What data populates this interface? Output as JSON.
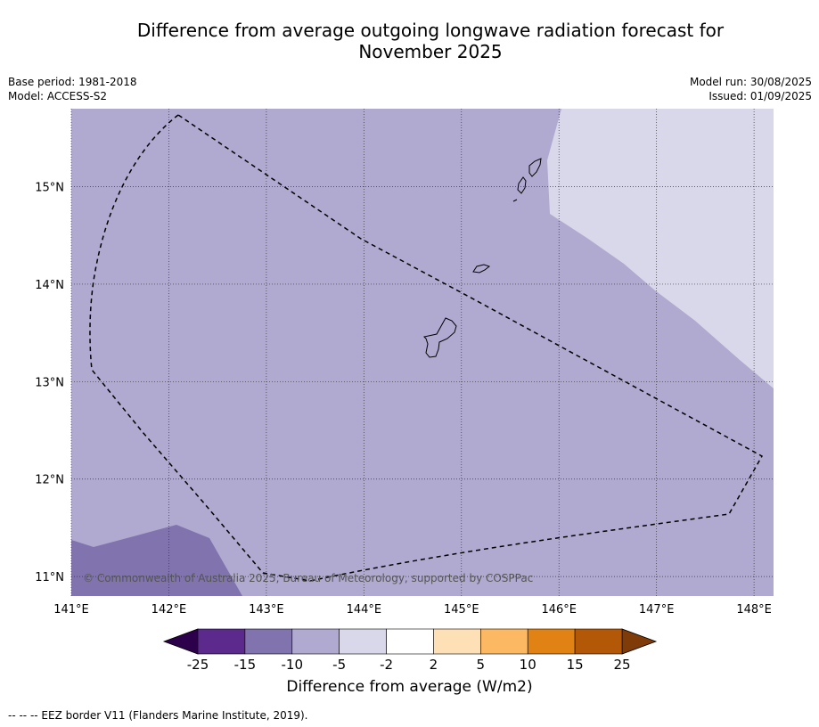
{
  "title": "Difference from average outgoing longwave radiation forecast for\nNovember 2025",
  "meta_left": [
    "Base period: 1981-2018",
    "Model: ACCESS-S2"
  ],
  "meta_right": [
    "Model run: 30/08/2025",
    "Issued: 01/09/2025"
  ],
  "copyright": "© Commonwealth of Australia 2025, Bureau of Meteorology, supported by COSPPac",
  "footer": "--  --  -- EEZ border V11 (Flanders Marine Institute, 2019).",
  "map": {
    "lon_range": [
      141.0,
      148.2
    ],
    "lat_range": [
      10.8,
      15.8
    ],
    "lon_ticks": [
      "141°E",
      "142°E",
      "143°E",
      "144°E",
      "145°E",
      "146°E",
      "147°E",
      "148°E"
    ],
    "lat_ticks": [
      "15°N",
      "14°N",
      "13°N",
      "12°N",
      "11°N"
    ],
    "lon_tick_values": [
      141,
      142,
      143,
      144,
      145,
      146,
      147,
      148
    ],
    "lat_tick_values": [
      15,
      14,
      13,
      12,
      11
    ],
    "grid": true
  },
  "colorbar": {
    "title": "Difference from average (W/m2)",
    "labels": [
      "-25",
      "-15",
      "-10",
      "-5",
      "-2",
      "2",
      "5",
      "10",
      "15",
      "25"
    ],
    "colors": [
      "#5b2a8c",
      "#8073ae",
      "#b0a9d0",
      "#d8d8ea",
      "#ffffff",
      "#fee0b6",
      "#fdb863",
      "#e08214",
      "#b35806"
    ],
    "under_color": "#2d004b",
    "over_color": "#7f3b08"
  }
}
